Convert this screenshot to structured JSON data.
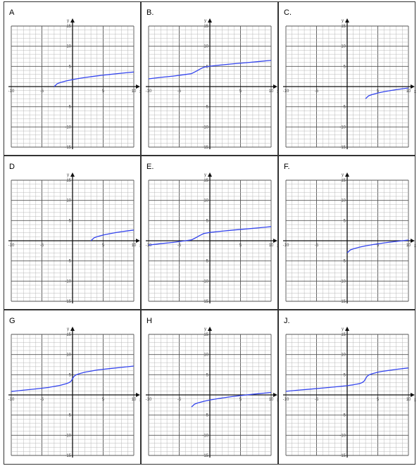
{
  "colors": {
    "curve": "#3344ee",
    "grid_minor": "#b8b8b8",
    "grid_major": "#555555",
    "axis": "#111111",
    "tick_text": "#444444"
  },
  "axis_labels": {
    "x": "x",
    "y": "y"
  },
  "chart_data": [
    {
      "panel": "A",
      "label": "A",
      "type": "line",
      "xlim": [
        -10,
        10
      ],
      "ylim": [
        -15,
        15
      ],
      "grid": true,
      "xticks": [
        -10,
        -5,
        5,
        10
      ],
      "yticks": [
        15,
        10,
        5,
        -5,
        -10,
        -15
      ],
      "series": [
        {
          "x": [
            -3,
            -2.5,
            -2,
            -1,
            0,
            1,
            2,
            3,
            4,
            5,
            6,
            7,
            8,
            9,
            10
          ],
          "y": [
            0,
            0.71,
            1,
            1.41,
            1.73,
            2,
            2.24,
            2.45,
            2.65,
            2.83,
            3,
            3.16,
            3.32,
            3.46,
            3.61
          ]
        }
      ]
    },
    {
      "panel": "B",
      "label": "B.",
      "type": "line",
      "xlim": [
        -10,
        10
      ],
      "ylim": [
        -15,
        15
      ],
      "grid": true,
      "xticks": [
        -10,
        -5,
        5,
        10
      ],
      "yticks": [
        15,
        10,
        5,
        -5,
        -10,
        -15
      ],
      "series": [
        {
          "x": [
            -10,
            -8,
            -6,
            -4,
            -3,
            -2.5,
            -2.2,
            -2,
            -1.8,
            -1.5,
            -1,
            0,
            2,
            4,
            6,
            8,
            10
          ],
          "y": [
            1.92,
            2.29,
            2.59,
            3.0,
            3.21,
            3.59,
            3.82,
            4.0,
            4.18,
            4.41,
            4.79,
            5.06,
            5.38,
            5.67,
            5.93,
            6.2,
            6.5
          ]
        }
      ]
    },
    {
      "panel": "C.",
      "label": "C.",
      "type": "line",
      "xlim": [
        -10,
        10
      ],
      "ylim": [
        -15,
        15
      ],
      "grid": true,
      "xticks": [
        -10,
        -5,
        5,
        10
      ],
      "yticks": [
        15,
        10,
        5,
        -5,
        -10,
        -15
      ],
      "series": [
        {
          "x": [
            3,
            3.5,
            4,
            5,
            6,
            7,
            8,
            9,
            10
          ],
          "y": [
            -3,
            -2.29,
            -2,
            -1.59,
            -1.27,
            -1,
            -0.76,
            -0.55,
            -0.35
          ]
        }
      ]
    },
    {
      "panel": "D",
      "label": "D",
      "type": "line",
      "xlim": [
        -10,
        10
      ],
      "ylim": [
        -15,
        15
      ],
      "grid": true,
      "xticks": [
        -10,
        -5,
        5,
        10
      ],
      "yticks": [
        15,
        10,
        5,
        -5,
        -10,
        -15
      ],
      "series": [
        {
          "x": [
            3,
            3.5,
            4,
            5,
            6,
            7,
            8,
            9,
            10
          ],
          "y": [
            0,
            0.71,
            1,
            1.41,
            1.73,
            2,
            2.24,
            2.45,
            2.65
          ]
        }
      ]
    },
    {
      "panel": "E.",
      "label": "E.",
      "type": "line",
      "xlim": [
        -10,
        10
      ],
      "ylim": [
        -15,
        15
      ],
      "grid": true,
      "xticks": [
        -10,
        -5,
        5,
        10
      ],
      "yticks": [
        15,
        10,
        5,
        -5,
        -10,
        -15
      ],
      "series": [
        {
          "x": [
            -10,
            -8,
            -6,
            -4,
            -3,
            -2.5,
            -2.2,
            -2,
            -1.8,
            -1.5,
            -1,
            0,
            2,
            4,
            6,
            8,
            10
          ],
          "y": [
            -1.08,
            -0.71,
            -0.41,
            0,
            0.21,
            0.59,
            0.82,
            1.0,
            1.18,
            1.41,
            1.79,
            2.06,
            2.38,
            2.67,
            2.93,
            3.2,
            3.5
          ]
        }
      ]
    },
    {
      "panel": "F.",
      "label": "F.",
      "type": "line",
      "xlim": [
        -10,
        10
      ],
      "ylim": [
        -15,
        15
      ],
      "grid": true,
      "xticks": [
        -10,
        -5,
        5,
        10
      ],
      "yticks": [
        15,
        10,
        5,
        -5,
        -10,
        -15
      ],
      "series": [
        {
          "x": [
            0,
            0.5,
            1,
            2,
            3,
            4,
            5,
            6,
            7,
            8,
            9,
            10
          ],
          "y": [
            -3,
            -2.29,
            -2,
            -1.59,
            -1.27,
            -1,
            -0.76,
            -0.55,
            -0.35,
            -0.17,
            0,
            0.16
          ]
        }
      ]
    },
    {
      "panel": "G",
      "label": "G",
      "type": "line",
      "xlim": [
        -10,
        10
      ],
      "ylim": [
        -15,
        15
      ],
      "grid": true,
      "xticks": [
        -10,
        -5,
        5,
        10
      ],
      "yticks": [
        15,
        10,
        5,
        -5,
        -10,
        -15
      ],
      "series": [
        {
          "x": [
            -10,
            -8,
            -6,
            -4,
            -2,
            -1,
            -0.5,
            -0.2,
            0,
            0.2,
            0.5,
            1,
            2,
            4,
            6,
            8,
            10
          ],
          "y": [
            0.85,
            1.18,
            1.49,
            1.83,
            2.37,
            2.79,
            3.1,
            3.48,
            4.0,
            4.52,
            4.9,
            5.21,
            5.63,
            6.17,
            6.51,
            6.82,
            7.15
          ]
        }
      ]
    },
    {
      "panel": "H",
      "label": "H",
      "type": "line",
      "xlim": [
        -10,
        10
      ],
      "ylim": [
        -15,
        15
      ],
      "grid": true,
      "xticks": [
        -10,
        -5,
        5,
        10
      ],
      "yticks": [
        15,
        10,
        5,
        -5,
        -10,
        -15
      ],
      "series": [
        {
          "x": [
            -3,
            -2.5,
            -2,
            -1,
            0,
            1,
            2,
            3,
            4,
            5,
            6,
            7,
            8,
            9,
            10
          ],
          "y": [
            -3,
            -2.29,
            -2,
            -1.59,
            -1.27,
            -1,
            -0.76,
            -0.55,
            -0.35,
            -0.17,
            0,
            0.16,
            0.32,
            0.46,
            0.61
          ]
        }
      ]
    },
    {
      "panel": "J.",
      "label": "J.",
      "type": "line",
      "xlim": [
        -10,
        10
      ],
      "ylim": [
        -15,
        15
      ],
      "grid": true,
      "xticks": [
        -10,
        -5,
        5,
        10
      ],
      "yticks": [
        15,
        10,
        5,
        -5,
        -10,
        -15
      ],
      "series": [
        {
          "x": [
            -10,
            -8,
            -6,
            -4,
            -2,
            0,
            1,
            2,
            2.5,
            2.8,
            3,
            3.2,
            3.5,
            4,
            5,
            6,
            8,
            10
          ],
          "y": [
            0.9,
            1.18,
            1.43,
            1.7,
            1.99,
            2.29,
            2.5,
            2.79,
            3.1,
            3.48,
            4.0,
            4.52,
            4.9,
            5.21,
            5.63,
            5.9,
            6.32,
            6.68
          ]
        }
      ]
    }
  ]
}
